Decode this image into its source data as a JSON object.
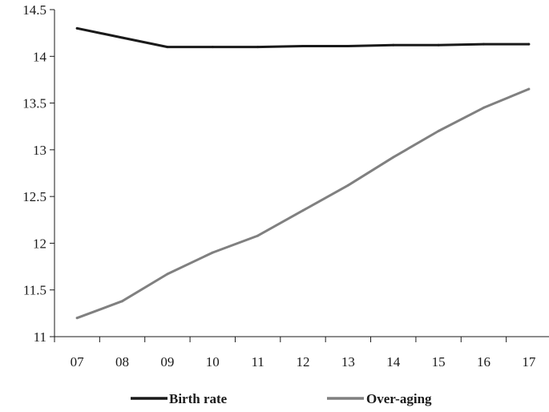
{
  "chart_data": {
    "type": "line",
    "x": [
      "07",
      "08",
      "09",
      "10",
      "11",
      "12",
      "13",
      "14",
      "15",
      "16",
      "17"
    ],
    "series": [
      {
        "name": "Birth rate",
        "color": "#1a1a1a",
        "values": [
          14.3,
          14.2,
          14.1,
          14.1,
          14.1,
          14.11,
          14.11,
          14.12,
          14.12,
          14.13,
          14.13
        ]
      },
      {
        "name": "Over-aging",
        "color": "#808080",
        "values": [
          11.2,
          11.38,
          11.67,
          11.9,
          12.08,
          12.35,
          12.62,
          12.92,
          13.2,
          13.45,
          13.65
        ]
      }
    ],
    "ylim": [
      11,
      14.5
    ],
    "yticks": [
      "11",
      "11.5",
      "12",
      "12.5",
      "13",
      "13.5",
      "14",
      "14.5"
    ],
    "grid": false,
    "legend": "bottom"
  }
}
